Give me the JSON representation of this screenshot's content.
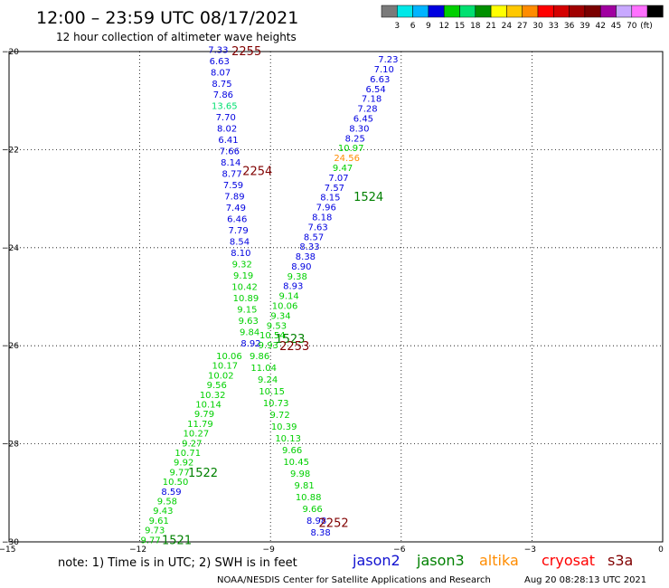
{
  "header": {
    "title": "12:00 – 23:59 UTC 08/17/2021",
    "subtitle": "12 hour collection of altimeter wave heights"
  },
  "colorbar": {
    "unit": "(ft)",
    "colors": [
      "#7a7a7a",
      "#00e8e8",
      "#00b4ff",
      "#0000e0",
      "#00d000",
      "#00e070",
      "#009000",
      "#ffff00",
      "#ffc800",
      "#ff8c00",
      "#ff0000",
      "#d40000",
      "#a00000",
      "#7a0000",
      "#a000a0",
      "#c8a8ff",
      "#ff70ff",
      "#000000"
    ],
    "labels": [
      "3",
      "6",
      "9",
      "12",
      "15",
      "18",
      "21",
      "24",
      "27",
      "30",
      "33",
      "36",
      "39",
      "42",
      "45",
      "70"
    ]
  },
  "footer": {
    "note": "note: 1) Time is in UTC; 2) SWH is in feet",
    "legend": [
      {
        "name": "jason2",
        "color": "#1010d0"
      },
      {
        "name": "jason3",
        "color": "#008000"
      },
      {
        "name": "altika",
        "color": "#ff8c00"
      },
      {
        "name": "cryosat",
        "color": "#ff0000"
      },
      {
        "name": "s3a",
        "color": "#800000"
      }
    ],
    "credit": "NOAA/NESDIS Center for Satellite Applications and Research",
    "timestamp": "Aug 20 08:28:13 UTC 2021"
  },
  "chart_data": {
    "type": "scatter",
    "xlim": [
      -15,
      0
    ],
    "ylim": [
      -30,
      -20
    ],
    "x_ticks": [
      -15,
      -12,
      -9,
      -6,
      -3,
      0
    ],
    "y_ticks": [
      -20,
      -22,
      -24,
      -26,
      -28,
      -30
    ],
    "x_tick_labels": [
      "−15",
      "−12",
      "−9",
      "−6",
      "−3",
      "0"
    ],
    "y_tick_labels": [
      "−20",
      "−22",
      "−24",
      "−26",
      "−28",
      "−30"
    ],
    "grid": true,
    "passes": [
      {
        "label": "2255",
        "label_x": -9.55,
        "label_y": -19.98,
        "label_color": "#800000",
        "x_start": -10.2,
        "y_start": -19.95,
        "x_end": -9.45,
        "y_end": -25.94,
        "values": [
          "7.33",
          "6.63",
          "8.07",
          "8.75",
          "7.86",
          "13.65",
          "7.70",
          "8.02",
          "6.41",
          "7.66",
          "8.14",
          "8.77",
          "7.59",
          "7.89",
          "7.49",
          "6.46",
          "7.79",
          "8.54",
          "8.10",
          "9.32",
          "9.19",
          "10.42",
          "10.89",
          "9.15",
          "9.63",
          "9.84",
          "8.92"
        ]
      },
      {
        "label": "2254",
        "label_x": -9.3,
        "label_y": -22.43,
        "label_color": "#800000"
      },
      {
        "label": "1524",
        "label_x": -6.75,
        "label_y": -22.95,
        "label_color": "#008000",
        "x_start": -6.3,
        "y_start": -20.15,
        "x_end": -9.05,
        "y_end": -25.98,
        "values": [
          "7.23",
          "7.10",
          "6.63",
          "6.54",
          "7.18",
          "7.28",
          "6.45",
          "8.30",
          "8.25",
          "10.97",
          "24.56",
          "9.47",
          "7.07",
          "7.57",
          "8.15",
          "7.96",
          "8.18",
          "7.63",
          "8.57",
          "8.33",
          "8.38",
          "8.90",
          "9.38",
          "8.93",
          "9.14",
          "10.06",
          "9.34",
          "9.53",
          "10.54",
          "9.93"
        ]
      },
      {
        "label": "1523",
        "label_x": -8.55,
        "label_y": -25.85,
        "label_color": "#008000"
      },
      {
        "label": "2253",
        "label_x": -8.45,
        "label_y": -26.0,
        "label_color": "#800000",
        "x_start": -9.25,
        "y_start": -26.2,
        "x_end": -7.85,
        "y_end": -29.8,
        "values": [
          "9.86",
          "11.04",
          "9.24",
          "10.15",
          "10.73",
          "9.72",
          "10.39",
          "10.13",
          "9.66",
          "10.45",
          "9.98",
          "9.81",
          "10.88",
          "9.66",
          "8.98",
          "8.38"
        ]
      },
      {
        "label": "2252",
        "label_x": -7.55,
        "label_y": -29.6,
        "label_color": "#800000"
      },
      {
        "label": "1522",
        "label_x": -10.55,
        "label_y": -28.58,
        "label_color": "#008000",
        "x_start": -9.95,
        "y_start": -26.2,
        "x_end": -11.75,
        "y_end": -29.95,
        "values": [
          "10.06",
          "10.17",
          "10.02",
          "9.56",
          "10.32",
          "10.14",
          "9.79",
          "11.79",
          "10.27",
          "9.27",
          "10.71",
          "9.92",
          "9.77",
          "10.50",
          "8.59",
          "9.58",
          "9.43",
          "9.61",
          "9.73",
          "9.77"
        ]
      },
      {
        "label": "1521",
        "label_x": -11.15,
        "label_y": -29.95,
        "label_color": "#008000"
      }
    ]
  }
}
